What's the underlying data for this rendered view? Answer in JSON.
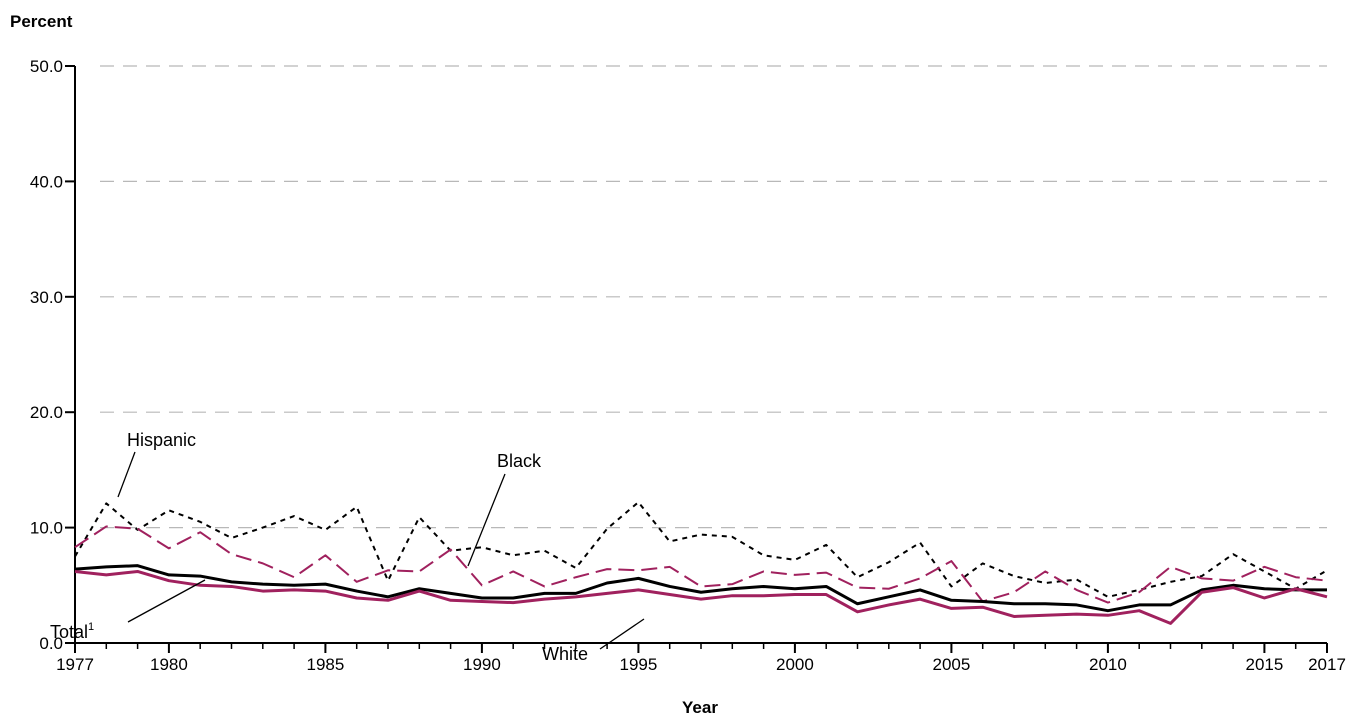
{
  "chart_data": {
    "type": "line",
    "ylabel": "Percent",
    "xlabel": "Year",
    "xlim": [
      1977,
      2017
    ],
    "ylim": [
      0,
      50
    ],
    "yticks": [
      "0.0",
      "10.0",
      "20.0",
      "30.0",
      "40.0",
      "50.0"
    ],
    "xticks": [
      "1977",
      "1980",
      "1985",
      "1990",
      "1995",
      "2000",
      "2005",
      "2010",
      "2015",
      "2017"
    ],
    "grid": true,
    "x": [
      1977,
      1978,
      1979,
      1980,
      1981,
      1982,
      1983,
      1984,
      1985,
      1986,
      1987,
      1988,
      1989,
      1990,
      1991,
      1992,
      1993,
      1994,
      1995,
      1996,
      1997,
      1998,
      1999,
      2000,
      2001,
      2002,
      2003,
      2004,
      2005,
      2006,
      2007,
      2008,
      2009,
      2010,
      2011,
      2012,
      2013,
      2014,
      2015,
      2016,
      2017
    ],
    "series": [
      {
        "name": "Hispanic",
        "color": "#000000",
        "style": "dotted",
        "values": [
          7.5,
          12.1,
          9.8,
          11.5,
          10.5,
          9.1,
          10.0,
          11.0,
          9.8,
          11.8,
          5.4,
          10.9,
          8.0,
          8.3,
          7.6,
          8.0,
          6.5,
          9.9,
          12.2,
          8.8,
          9.4,
          9.2,
          7.6,
          7.2,
          8.5,
          5.7,
          7.0,
          8.7,
          4.9,
          6.9,
          5.8,
          5.2,
          5.5,
          4.0,
          4.6,
          5.3,
          5.8,
          7.7,
          6.2,
          4.7,
          6.3
        ]
      },
      {
        "name": "Black",
        "color": "#a0215e",
        "style": "dashed",
        "values": [
          8.3,
          10.1,
          9.9,
          8.2,
          9.6,
          7.7,
          6.9,
          5.7,
          7.6,
          5.3,
          6.3,
          6.2,
          8.1,
          5.0,
          6.2,
          4.9,
          5.7,
          6.4,
          6.3,
          6.6,
          4.9,
          5.1,
          6.2,
          5.9,
          6.1,
          4.8,
          4.7,
          5.6,
          7.1,
          3.6,
          4.4,
          6.2,
          4.6,
          3.5,
          4.4,
          6.6,
          5.6,
          5.4,
          6.6,
          5.7,
          5.4
        ]
      },
      {
        "name": "Total",
        "color": "#000000",
        "style": "solid",
        "values": [
          6.4,
          6.6,
          6.7,
          5.9,
          5.8,
          5.3,
          5.1,
          5.0,
          5.1,
          4.5,
          4.0,
          4.7,
          4.3,
          3.9,
          3.9,
          4.3,
          4.3,
          5.2,
          5.6,
          4.9,
          4.4,
          4.7,
          4.9,
          4.7,
          4.9,
          3.4,
          4.0,
          4.6,
          3.7,
          3.6,
          3.4,
          3.4,
          3.3,
          2.8,
          3.3,
          3.3,
          4.6,
          5.0,
          4.7,
          4.6,
          4.6
        ]
      },
      {
        "name": "White",
        "color": "#a0215e",
        "style": "solid",
        "values": [
          6.2,
          5.9,
          6.2,
          5.4,
          5.0,
          4.9,
          4.5,
          4.6,
          4.5,
          3.9,
          3.7,
          4.5,
          3.7,
          3.6,
          3.5,
          3.8,
          4.0,
          4.3,
          4.6,
          4.2,
          3.8,
          4.1,
          4.1,
          4.2,
          4.2,
          2.7,
          3.3,
          3.8,
          3.0,
          3.1,
          2.3,
          2.4,
          2.5,
          2.4,
          2.8,
          1.7,
          4.4,
          4.8,
          3.9,
          4.7,
          4.0
        ]
      }
    ],
    "annotations": {
      "hispanic": "Hispanic",
      "black": "Black",
      "total": "Total",
      "total_sup": "1",
      "white": "White"
    }
  }
}
